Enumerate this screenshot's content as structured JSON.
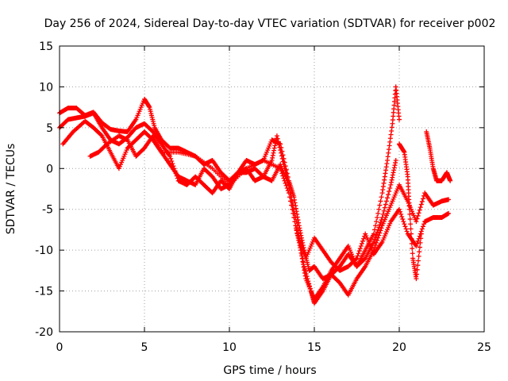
{
  "chart_data": {
    "type": "scatter",
    "title": "Day 256 of 2024, Sidereal Day-to-day VTEC variation (SDTVAR) for receiver p002",
    "xlabel": "GPS time / hours",
    "ylabel": "SDTVAR / TECUs",
    "xlim": [
      0,
      25
    ],
    "ylim": [
      -20,
      15
    ],
    "x_ticks": [
      0,
      5,
      10,
      15,
      20,
      25
    ],
    "y_ticks": [
      -20,
      -15,
      -10,
      -5,
      0,
      5,
      10,
      15
    ],
    "grid": true,
    "marker": "+",
    "marker_color": "#ff0000",
    "series": [
      {
        "x": [
          0.0,
          0.5,
          1.0,
          1.5,
          2.0,
          2.5,
          3.0,
          3.5,
          4.0,
          4.5,
          5.0,
          5.3,
          5.6,
          6.0,
          6.5,
          7.0,
          7.5,
          8.0,
          8.5,
          9.0,
          9.5,
          10.0,
          10.5,
          11.0,
          11.5,
          12.0,
          12.5,
          13.0,
          13.5,
          13.8,
          14.1,
          14.4,
          14.7,
          15.0,
          15.5,
          16.0,
          16.5,
          17.0,
          17.5,
          18.0,
          18.5,
          19.0,
          19.5,
          19.8
        ],
        "y": [
          6.8,
          7.4,
          7.4,
          6.5,
          6.9,
          5.6,
          4.8,
          4.6,
          4.5,
          6.0,
          8.5,
          7.5,
          5.0,
          3.5,
          2.5,
          2.5,
          2.0,
          1.5,
          0.5,
          1.0,
          -0.5,
          -1.5,
          -0.5,
          1.0,
          0.5,
          1.0,
          3.5,
          3.0,
          -1.5,
          -3.5,
          -7.0,
          -10.0,
          -12.5,
          -12.0,
          -13.5,
          -13.0,
          -12.0,
          -10.5,
          -12.0,
          -11.0,
          -9.0,
          -6.0,
          -2.0,
          1.0
        ]
      },
      {
        "x": [
          0.0,
          0.5,
          1.0,
          1.5,
          2.0,
          2.5,
          3.0,
          3.5,
          4.0,
          4.5,
          5.0,
          5.5,
          6.0,
          6.5,
          7.0,
          7.5,
          8.0,
          8.5,
          9.0,
          9.5,
          10.0,
          10.5,
          11.0,
          11.5,
          12.0,
          12.5,
          12.8,
          13.2,
          13.5,
          13.9,
          14.2,
          14.5,
          15.0,
          15.5,
          16.0,
          16.5,
          17.0,
          17.5,
          18.0,
          18.5,
          19.0,
          19.3,
          19.6,
          19.8,
          20.0
        ],
        "y": [
          5.0,
          6.0,
          6.2,
          6.4,
          6.8,
          5.0,
          3.5,
          3.0,
          3.8,
          5.0,
          5.5,
          4.5,
          3.0,
          1.5,
          -1.5,
          -2.0,
          -1.0,
          -2.0,
          -3.0,
          -1.5,
          -2.5,
          -0.5,
          -0.5,
          0.0,
          -1.0,
          1.0,
          4.0,
          0.5,
          -2.0,
          -7.0,
          -10.0,
          -13.5,
          -16.0,
          -14.5,
          -12.5,
          -11.0,
          -9.5,
          -12.0,
          -10.0,
          -8.0,
          -3.0,
          1.0,
          5.5,
          10.0,
          6.0
        ]
      },
      {
        "x": [
          0.2,
          0.8,
          1.5,
          2.0,
          2.5,
          3.0,
          3.5,
          4.0,
          4.5,
          5.0,
          5.5,
          6.0,
          6.5,
          7.0,
          7.5,
          8.0,
          8.5,
          9.0,
          9.5,
          10.0,
          10.5,
          11.0,
          11.5,
          12.0,
          12.5,
          13.0,
          13.5,
          14.0,
          14.4,
          14.8,
          15.0,
          15.5,
          16.0,
          16.5,
          17.0,
          17.5,
          18.0,
          18.5,
          19.0,
          19.5,
          20.0,
          20.5,
          21.0,
          21.5,
          22.0,
          22.5,
          22.9
        ],
        "y": [
          3.0,
          4.5,
          5.8,
          5.0,
          4.0,
          2.0,
          0.0,
          2.5,
          3.5,
          4.5,
          3.5,
          2.0,
          0.5,
          -1.0,
          -1.5,
          -2.0,
          0.0,
          -1.0,
          -2.5,
          -2.0,
          -0.5,
          0.0,
          -1.5,
          -1.0,
          -1.5,
          0.5,
          -2.0,
          -7.0,
          -12.0,
          -15.0,
          -16.5,
          -15.0,
          -13.0,
          -14.0,
          -15.5,
          -13.5,
          -12.0,
          -10.0,
          -7.0,
          -4.5,
          -2.0,
          -4.0,
          -6.5,
          -3.0,
          -4.5,
          -4.0,
          -3.8
        ]
      },
      {
        "x": [
          1.8,
          2.3,
          2.8,
          3.5,
          4.0,
          4.5,
          5.0,
          5.5,
          6.0,
          7.0,
          8.0,
          9.0,
          10.0,
          11.0,
          12.0,
          13.0,
          13.5,
          14.0,
          14.5,
          15.0,
          15.5,
          16.0,
          16.5,
          17.0,
          17.5,
          18.0,
          18.5,
          19.0,
          19.5,
          20.0,
          20.5,
          21.0,
          21.5,
          22.0,
          22.5,
          22.9
        ],
        "y": [
          1.5,
          2.0,
          3.0,
          4.0,
          3.5,
          1.5,
          2.5,
          4.0,
          2.0,
          2.0,
          1.5,
          0.0,
          -2.0,
          0.0,
          1.0,
          0.0,
          -3.0,
          -8.0,
          -11.0,
          -8.5,
          -10.0,
          -11.5,
          -12.5,
          -12.0,
          -11.0,
          -8.0,
          -10.5,
          -9.0,
          -6.5,
          -5.0,
          -8.0,
          -9.5,
          -6.5,
          -6.0,
          -6.0,
          -5.5
        ]
      },
      {
        "x": [
          20.0,
          20.3,
          20.5,
          20.6,
          20.8,
          21.0,
          21.3
        ],
        "y": [
          3.0,
          2.0,
          -1.0,
          -5.0,
          -11.0,
          -13.5,
          -8.0
        ]
      },
      {
        "x": [
          21.6,
          21.8,
          22.0,
          22.2,
          22.5,
          22.8,
          23.0
        ],
        "y": [
          4.5,
          2.5,
          0.0,
          -1.5,
          -1.5,
          -0.5,
          -1.5
        ]
      }
    ]
  }
}
